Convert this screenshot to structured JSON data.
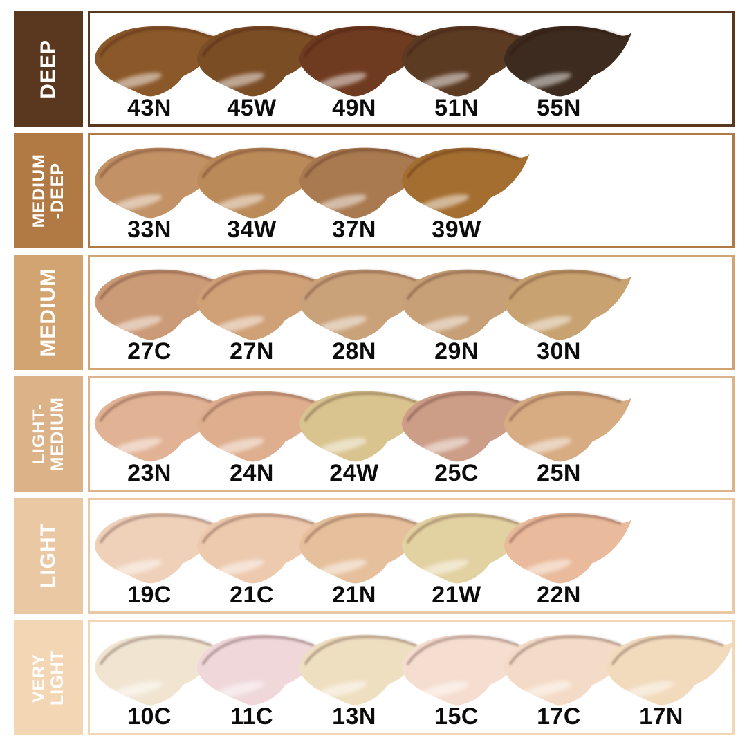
{
  "page": {
    "background": "#ffffff"
  },
  "chart_data": {
    "type": "table",
    "title": "",
    "legend": "none",
    "rows": [
      {
        "category": "DEEP",
        "category_lines": [
          "DEEP"
        ],
        "band_color": "#5a3820",
        "shades": [
          {
            "name": "43N",
            "color": "#8a5829"
          },
          {
            "name": "45W",
            "color": "#7b4d25"
          },
          {
            "name": "49N",
            "color": "#6f3b20"
          },
          {
            "name": "51N",
            "color": "#5c3b23"
          },
          {
            "name": "55N",
            "color": "#3c2b1e"
          }
        ]
      },
      {
        "category": "MEDIUM-DEEP",
        "category_lines": [
          "MEDIUM",
          "-DEEP"
        ],
        "band_color": "#b17a44",
        "shades": [
          {
            "name": "33N",
            "color": "#c29165"
          },
          {
            "name": "34W",
            "color": "#bb8a59"
          },
          {
            "name": "37N",
            "color": "#a97a50"
          },
          {
            "name": "39W",
            "color": "#a46e30"
          }
        ]
      },
      {
        "category": "MEDIUM",
        "category_lines": [
          "MEDIUM"
        ],
        "band_color": "#d2a472",
        "shades": [
          {
            "name": "27C",
            "color": "#cb9a76"
          },
          {
            "name": "27N",
            "color": "#d0a077"
          },
          {
            "name": "28N",
            "color": "#caa27a"
          },
          {
            "name": "29N",
            "color": "#c7a077"
          },
          {
            "name": "30N",
            "color": "#c8a271"
          }
        ]
      },
      {
        "category": "LIGHT-MEDIUM",
        "category_lines": [
          "LIGHT-",
          "MEDIUM"
        ],
        "band_color": "#dcb289",
        "shades": [
          {
            "name": "23N",
            "color": "#e1b294"
          },
          {
            "name": "24N",
            "color": "#deae8e"
          },
          {
            "name": "24W",
            "color": "#d9c48f"
          },
          {
            "name": "25C",
            "color": "#cc9d87"
          },
          {
            "name": "25N",
            "color": "#d7ac83"
          }
        ]
      },
      {
        "category": "LIGHT",
        "category_lines": [
          "LIGHT"
        ],
        "band_color": "#eac8a3",
        "shades": [
          {
            "name": "19C",
            "color": "#efd1ba"
          },
          {
            "name": "21C",
            "color": "#edc9ae"
          },
          {
            "name": "21N",
            "color": "#e6c09c"
          },
          {
            "name": "21W",
            "color": "#e2d1a1"
          },
          {
            "name": "22N",
            "color": "#e9ba9b"
          }
        ]
      },
      {
        "category": "VERY LIGHT",
        "category_lines": [
          "VERY",
          "LIGHT"
        ],
        "band_color": "#f3d7b5",
        "shades": [
          {
            "name": "10C",
            "color": "#f1e5d2"
          },
          {
            "name": "11C",
            "color": "#efd7da"
          },
          {
            "name": "13N",
            "color": "#efdfc1"
          },
          {
            "name": "15C",
            "color": "#f5ddcf"
          },
          {
            "name": "17C",
            "color": "#f4dbc7"
          },
          {
            "name": "17N",
            "color": "#f2dabd"
          }
        ]
      }
    ]
  }
}
